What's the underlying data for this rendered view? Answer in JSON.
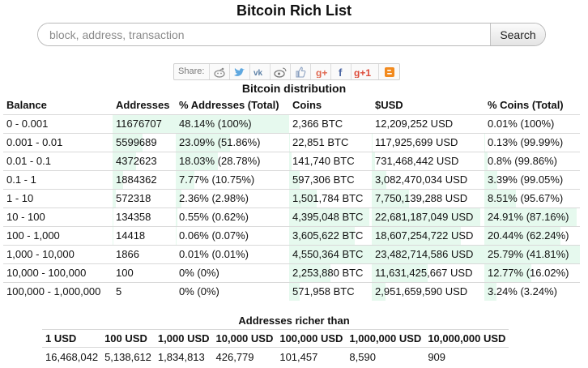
{
  "header": {
    "title": "Bitcoin Rich List"
  },
  "search": {
    "placeholder": "block, address, transaction",
    "button_label": "Search"
  },
  "share": {
    "label": "Share:",
    "icons": [
      "reddit-icon",
      "twitter-icon",
      "vk-icon",
      "weibo-icon",
      "like-icon",
      "googleplus-icon",
      "facebook-icon",
      "google-plus-one-icon",
      "blogger-icon"
    ]
  },
  "distribution": {
    "title": "Bitcoin distribution",
    "columns": [
      "Balance",
      "Addresses",
      "% Addresses (Total)",
      "Coins",
      "$USD",
      "% Coins (Total)"
    ],
    "rows": [
      {
        "balance": "0 - 0.001",
        "addresses": "11676707",
        "pct_addresses": "48.14% (100%)",
        "coins": "2,366 BTC",
        "usd": "12,209,252 USD",
        "pct_coins": "0.01% (100%)"
      },
      {
        "balance": "0.001 - 0.01",
        "addresses": "5599689",
        "pct_addresses": "23.09% (51.86%)",
        "coins": "22,851 BTC",
        "usd": "117,925,699 USD",
        "pct_coins": "0.13% (99.99%)"
      },
      {
        "balance": "0.01 - 0.1",
        "addresses": "4372623",
        "pct_addresses": "18.03% (28.78%)",
        "coins": "141,740 BTC",
        "usd": "731,468,442 USD",
        "pct_coins": "0.8% (99.86%)"
      },
      {
        "balance": "0.1 - 1",
        "addresses": "1884362",
        "pct_addresses": "7.77% (10.75%)",
        "coins": "597,306 BTC",
        "usd": "3,082,470,034 USD",
        "pct_coins": "3.39% (99.05%)"
      },
      {
        "balance": "1 - 10",
        "addresses": "572318",
        "pct_addresses": "2.36% (2.98%)",
        "coins": "1,501,784 BTC",
        "usd": "7,750,139,288 USD",
        "pct_coins": "8.51% (95.67%)"
      },
      {
        "balance": "10 - 100",
        "addresses": "134358",
        "pct_addresses": "0.55% (0.62%)",
        "coins": "4,395,048 BTC",
        "usd": "22,681,187,049 USD",
        "pct_coins": "24.91% (87.16%)"
      },
      {
        "balance": "100 - 1,000",
        "addresses": "14418",
        "pct_addresses": "0.06% (0.07%)",
        "coins": "3,605,622 BTC",
        "usd": "18,607,254,722 USD",
        "pct_coins": "20.44% (62.24%)"
      },
      {
        "balance": "1,000 - 10,000",
        "addresses": "1866",
        "pct_addresses": "0.01% (0.01%)",
        "coins": "4,550,364 BTC",
        "usd": "23,482,714,586 USD",
        "pct_coins": "25.79% (41.81%)"
      },
      {
        "balance": "10,000 - 100,000",
        "addresses": "100",
        "pct_addresses": "0% (0%)",
        "coins": "2,253,880 BTC",
        "usd": "11,631,425,667 USD",
        "pct_coins": "12.77% (16.02%)"
      },
      {
        "balance": "100,000 - 1,000,000",
        "addresses": "5",
        "pct_addresses": "0% (0%)",
        "coins": "571,958 BTC",
        "usd": "2,951,659,590 USD",
        "pct_coins": "3.24% (3.24%)"
      }
    ]
  },
  "richer": {
    "title": "Addresses richer than",
    "columns": [
      "1 USD",
      "100 USD",
      "1,000 USD",
      "10,000 USD",
      "100,000 USD",
      "1,000,000 USD",
      "10,000,000 USD"
    ],
    "values": [
      "16,468,042",
      "5,138,612",
      "1,834,813",
      "426,779",
      "101,457",
      "8,590",
      "909"
    ]
  },
  "colors": {
    "bar_fill": "#e6f9ee",
    "divider": "#d9d9d9"
  }
}
